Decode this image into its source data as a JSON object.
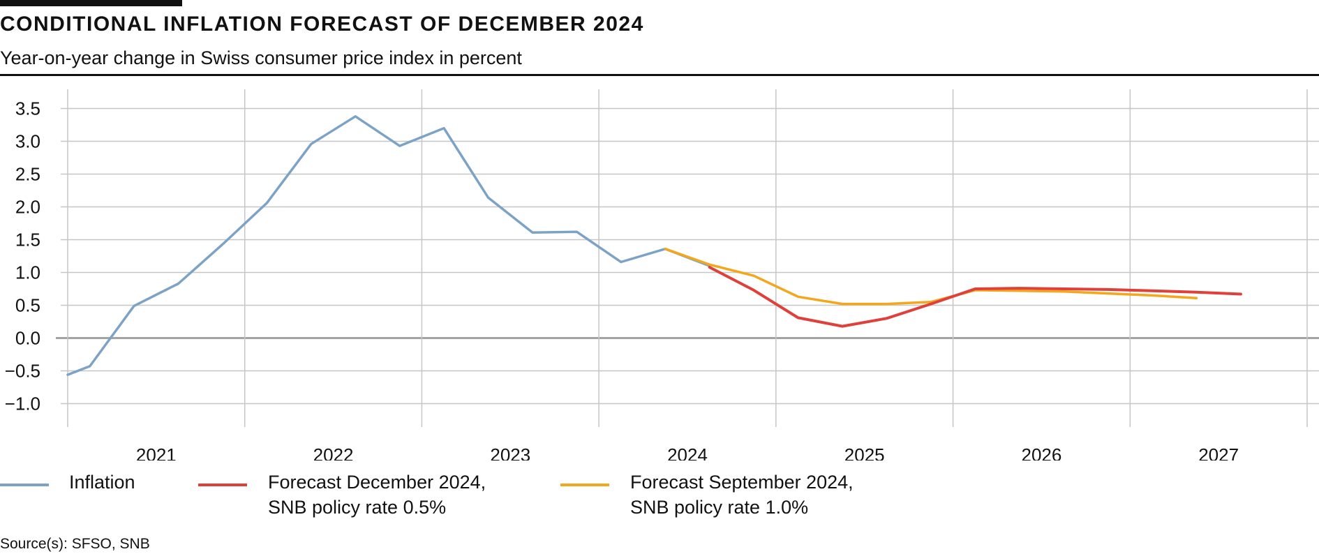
{
  "header": {
    "title": "CONDITIONAL INFLATION FORECAST OF DECEMBER 2024",
    "subtitle": "Year-on-year change in Swiss consumer price index in percent"
  },
  "chart_data": {
    "type": "line",
    "title": "CONDITIONAL INFLATION FORECAST OF DECEMBER 2024",
    "ylabel": "Year-on-year change in Swiss consumer price index in percent",
    "xlabel": "",
    "xlim": [
      2020.5,
      2027.5
    ],
    "ylim": [
      -1.25,
      3.75
    ],
    "yticks": [
      3.5,
      3.0,
      2.5,
      2.0,
      1.5,
      1.0,
      0.5,
      0.0,
      -0.5,
      -1.0
    ],
    "ytick_labels": [
      "3.5",
      "3.0",
      "2.5",
      "2.0",
      "1.5",
      "1.0",
      "0.5",
      "0.0",
      "−0.5",
      "−1.0"
    ],
    "xtick_labels": [
      "2021",
      "2022",
      "2023",
      "2024",
      "2025",
      "2026",
      "2027"
    ],
    "grid": true,
    "series": [
      {
        "name": "Inflation",
        "color": "#7ca3c6",
        "x": [
          2020.5,
          2020.625,
          2020.875,
          2021.125,
          2021.375,
          2021.625,
          2021.875,
          2022.125,
          2022.375,
          2022.625,
          2022.875,
          2023.125,
          2023.375,
          2023.625,
          2023.875,
          2024.125
        ],
        "y": [
          -0.56,
          -0.43,
          0.49,
          0.83,
          1.43,
          2.06,
          2.96,
          3.38,
          2.93,
          3.2,
          2.14,
          1.61,
          1.62,
          1.16,
          1.36,
          1.1
        ]
      },
      {
        "name": "Forecast December 2024, SNB policy rate 0.5%",
        "color": "#e0403a",
        "x": [
          2024.125,
          2024.375,
          2024.625,
          2024.875,
          2025.125,
          2025.375,
          2025.625,
          2025.875,
          2026.125,
          2026.375,
          2026.625,
          2026.875,
          2027.125
        ],
        "y": [
          1.08,
          0.73,
          0.31,
          0.18,
          0.3,
          0.52,
          0.75,
          0.76,
          0.75,
          0.74,
          0.72,
          0.7,
          0.67
        ]
      },
      {
        "name": "Forecast September 2024, SNB policy rate 1.0%",
        "color": "#f4a61c",
        "x": [
          2023.875,
          2024.125,
          2024.375,
          2024.625,
          2024.875,
          2025.125,
          2025.375,
          2025.625,
          2025.875,
          2026.125,
          2026.375,
          2026.625,
          2026.875
        ],
        "y": [
          1.36,
          1.12,
          0.95,
          0.63,
          0.52,
          0.52,
          0.55,
          0.73,
          0.72,
          0.71,
          0.68,
          0.65,
          0.61
        ]
      }
    ],
    "legend": {
      "position": "bottom",
      "items": [
        {
          "line1": "Inflation",
          "line2": "",
          "color": "#7ca3c6"
        },
        {
          "line1": "Forecast December 2024,",
          "line2": "SNB policy rate 0.5%",
          "color": "#e0403a"
        },
        {
          "line1": "Forecast September 2024,",
          "line2": "SNB policy rate 1.0%",
          "color": "#f4a61c"
        }
      ]
    }
  },
  "footer": {
    "source": "Source(s): SFSO, SNB"
  }
}
